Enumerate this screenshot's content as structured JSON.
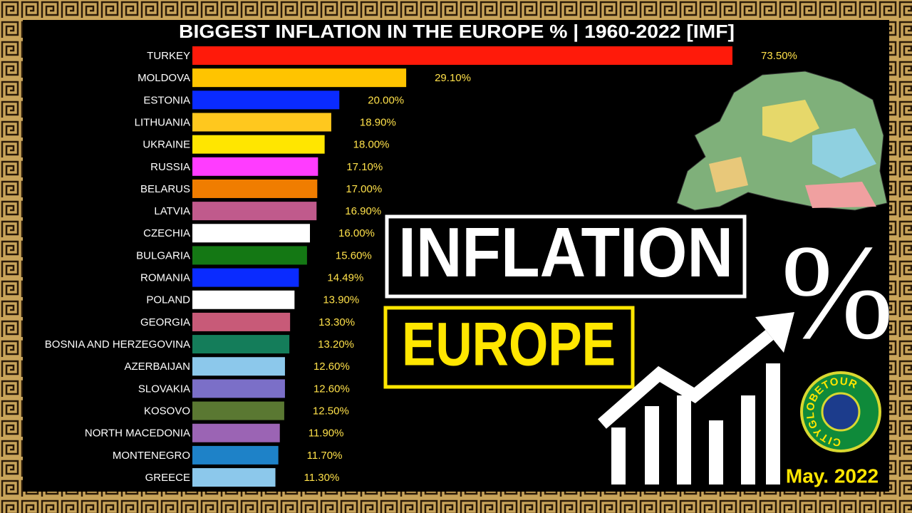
{
  "chart_data": {
    "type": "bar",
    "title": "BIGGEST INFLATION IN THE EUROPE % | 1960-2022 [IMF]",
    "categories": [
      "TURKEY",
      "MOLDOVA",
      "ESTONIA",
      "LITHUANIA",
      "UKRAINE",
      "RUSSIA",
      "BELARUS",
      "LATVIA",
      "CZECHIA",
      "BULGARIA",
      "ROMANIA",
      "POLAND",
      "GEORGIA",
      "BOSNIA AND HERZEGOVINA",
      "AZERBAIJAN",
      "SLOVAKIA",
      "KOSOVO",
      "NORTH MACEDONIA",
      "MONTENEGRO",
      "GREECE"
    ],
    "values": [
      73.5,
      29.1,
      20.0,
      18.9,
      18.0,
      17.1,
      17.0,
      16.9,
      16.0,
      15.6,
      14.49,
      13.9,
      13.3,
      13.2,
      12.6,
      12.6,
      12.5,
      11.9,
      11.7,
      11.3
    ],
    "value_labels": [
      "73.50%",
      "29.10%",
      "20.00%",
      "18.90%",
      "18.00%",
      "17.10%",
      "17.00%",
      "16.90%",
      "16.00%",
      "15.60%",
      "14.49%",
      "13.90%",
      "13.30%",
      "13.20%",
      "12.60%",
      "12.60%",
      "12.50%",
      "11.90%",
      "11.70%",
      "11.30%"
    ],
    "colors": [
      "#ff1a0a",
      "#ffc400",
      "#0a2bff",
      "#ffc81e",
      "#ffe600",
      "#ff3cff",
      "#f07d00",
      "#c05a8c",
      "#ffffff",
      "#147814",
      "#0a2bff",
      "#ffffff",
      "#c85a78",
      "#147d5a",
      "#8cc8eb",
      "#7b6fc8",
      "#5a7832",
      "#9b64b4",
      "#1e82c8",
      "#8cc8eb"
    ]
  },
  "overlay": {
    "headline": "INFLATION",
    "subheadline": "EUROPE",
    "symbol": "%",
    "date": "May. 2022",
    "logo": "CITYGLOBETOUR"
  }
}
